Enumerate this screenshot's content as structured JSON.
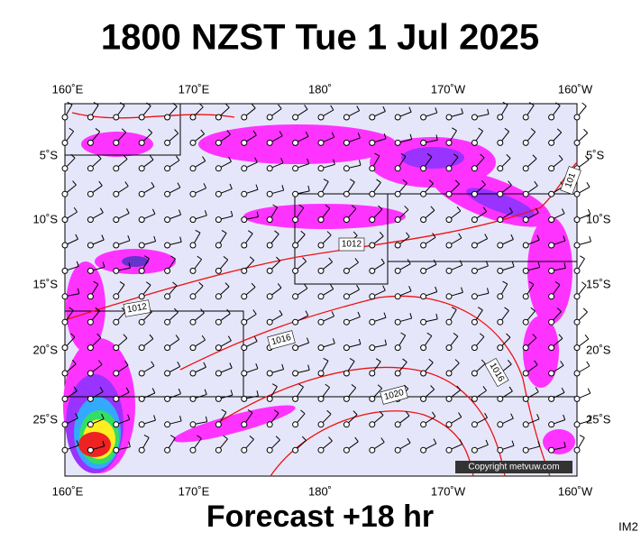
{
  "title": "1800 NZST Tue 1 Jul 2025",
  "longitude_labels": [
    "160˚E",
    "170˚E",
    "180˚",
    "170˚W",
    "160˚W"
  ],
  "latitude_labels": [
    "5˚S",
    "10˚S",
    "15˚S",
    "20˚S",
    "25˚S"
  ],
  "isobar_labels": [
    "1012",
    "1012",
    "1016",
    "1016",
    "1020",
    "101"
  ],
  "footer": "Forecast +18 hr",
  "copyright": "Copyright metvuw.com",
  "image_id": "IM2"
}
